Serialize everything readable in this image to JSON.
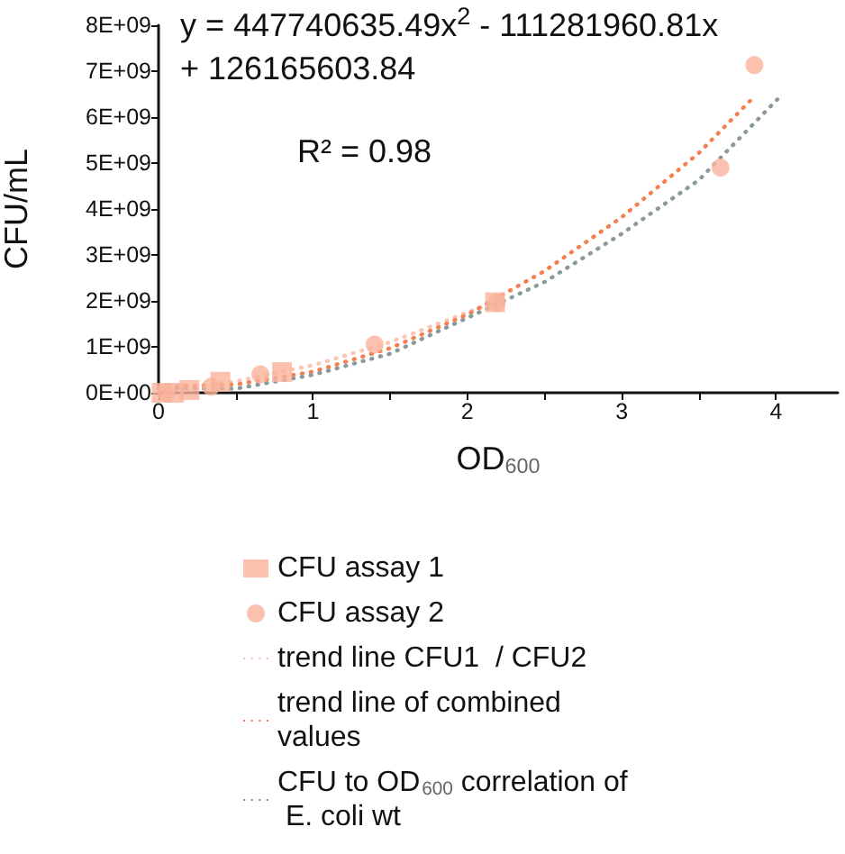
{
  "chart_data": {
    "type": "scatter",
    "xlabel": "OD$_{600}$",
    "ylabel": "CFU/mL",
    "annotations": [
      "y = 447740635.49x$^{2}$ - 111281960.81x + 126165603.84",
      "R² = 0.98"
    ],
    "xlim": [
      0,
      4.4
    ],
    "xticks": [
      0,
      {
        "value": 0.5,
        "label": null
      },
      1,
      {
        "value": 1.5,
        "label": null
      },
      2,
      {
        "value": 2.5,
        "label": null
      },
      3,
      {
        "value": 3.5,
        "label": null
      },
      4
    ],
    "ylim": [
      0,
      8000000000
    ],
    "yticks": [
      {
        "value": 0,
        "label": "0E+00"
      },
      {
        "value": 1000000000,
        "label": "1E+09"
      },
      {
        "value": 2000000000,
        "label": "2E+09"
      },
      {
        "value": 3000000000,
        "label": "3E+09"
      },
      {
        "value": 4000000000,
        "label": "4E+09"
      },
      {
        "value": 5000000000,
        "label": "5E+09"
      },
      {
        "value": 6000000000,
        "label": "6E+09"
      },
      {
        "value": 7000000000,
        "label": "7E+09"
      },
      {
        "value": 8000000000,
        "label": "8E+09"
      }
    ],
    "grid": false,
    "legend": "bottom",
    "series": [
      {
        "name": "CFU assay 1",
        "marker": "square",
        "color": "#f9b39b",
        "x": [
          0.02,
          0.1,
          0.2,
          0.4,
          0.8,
          2.18
        ],
        "values": [
          0,
          0,
          60000000,
          240000000,
          450000000,
          1970000000
        ]
      },
      {
        "name": "CFU assay 2",
        "marker": "circle",
        "color": "#f9b39b",
        "x": [
          0.05,
          0.34,
          0.66,
          1.4,
          2.19,
          3.64,
          3.86
        ],
        "values": [
          0,
          130000000,
          400000000,
          1050000000,
          1960000000,
          4900000000,
          7130000000
        ]
      },
      {
        "name": "trend line CFU1  / CFU2",
        "type": "line",
        "marker": "none",
        "line_style": "dotted",
        "color": "#fcc6b3",
        "x": [
          0,
          0.5,
          1,
          1.5,
          2,
          2.2
        ],
        "values": [
          50000000,
          250000000,
          600000000,
          1100000000,
          1750000000,
          2000000000
        ]
      },
      {
        "name": "trend line of combined values",
        "type": "line",
        "marker": "none",
        "line_style": "dotted",
        "color": "#f47f4f",
        "x": [
          0,
          0.5,
          1,
          1.5,
          2,
          2.5,
          3,
          3.5,
          3.86
        ],
        "values": [
          130000000,
          180000000,
          460000000,
          970000000,
          1700000000,
          2650000000,
          3820000000,
          5220000000,
          6450000000
        ]
      },
      {
        "name": "CFU to OD$_{600}$ correlation of E. coli wt",
        "type": "line",
        "marker": "none",
        "line_style": "dotted",
        "color": "#8a9a9a",
        "x": [
          0,
          0.5,
          1,
          1.5,
          2,
          2.5,
          3,
          3.5,
          4.03
        ],
        "values": [
          100000000,
          90000000,
          390000000,
          850000000,
          1630000000,
          2410000000,
          3460000000,
          4630000000,
          6460000000
        ]
      }
    ]
  }
}
